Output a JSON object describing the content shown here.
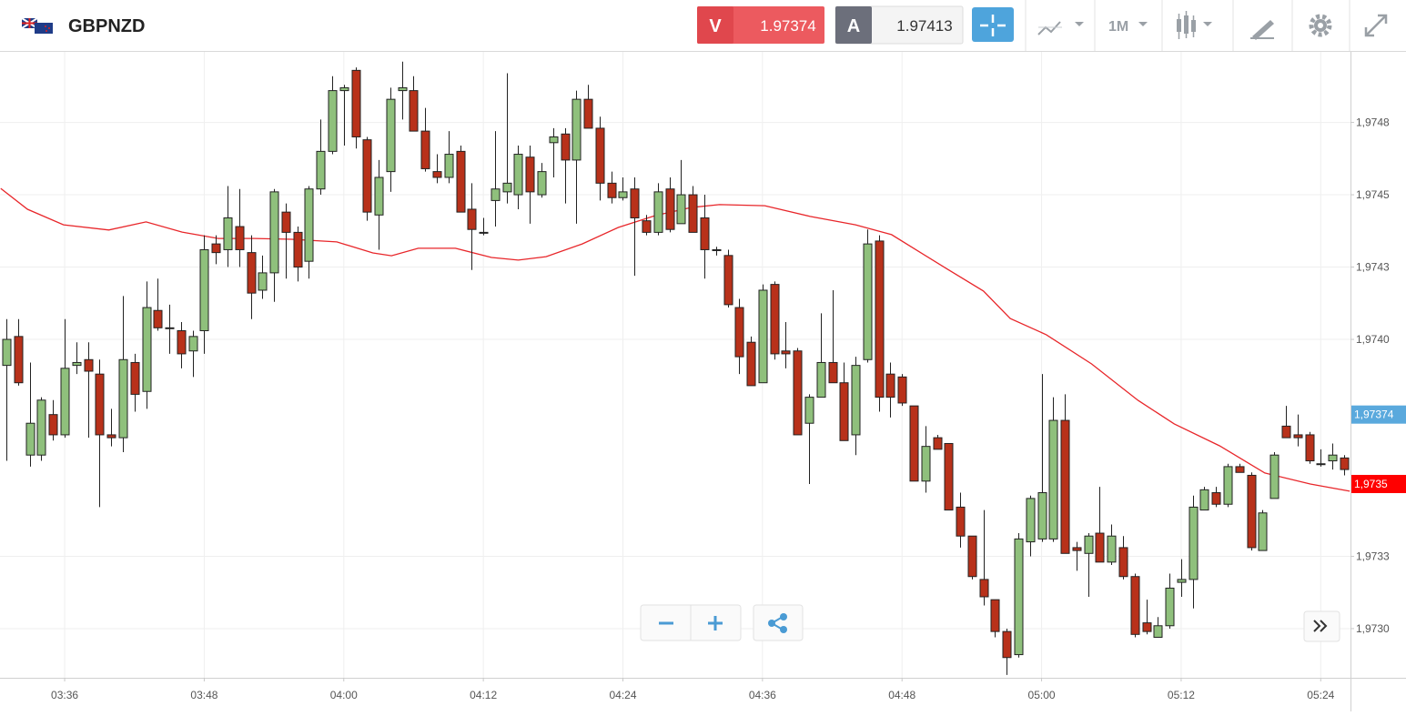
{
  "header": {
    "symbol": "GBPNZD",
    "sell_label": "V",
    "sell_price": "1.97374",
    "buy_label": "A",
    "buy_price": "1.97413",
    "timeframe": "1M"
  },
  "chart_data": {
    "type": "candlestick",
    "x": [
      211,
      212,
      213,
      214,
      215,
      216,
      217,
      218,
      219,
      220,
      221,
      222,
      223,
      224,
      225,
      226,
      227,
      228,
      229,
      230,
      231,
      232,
      233,
      234,
      235,
      236,
      237,
      238,
      239,
      240,
      241,
      242,
      243,
      244,
      245,
      246,
      247,
      248,
      249,
      250,
      251,
      252,
      253,
      254,
      255,
      256,
      257,
      258,
      259,
      260,
      261,
      262,
      263,
      264,
      265,
      266,
      267,
      268,
      269,
      270,
      271,
      272,
      273,
      274,
      275,
      276,
      277,
      278,
      279,
      280,
      281,
      282,
      283,
      284,
      285,
      286,
      287,
      288,
      289,
      290,
      291,
      292,
      293,
      294,
      295,
      296,
      297,
      298,
      299,
      300,
      301,
      302,
      303,
      304,
      305,
      306,
      307,
      308,
      309,
      310,
      311,
      312,
      313,
      314,
      315,
      316,
      317,
      318,
      319,
      320,
      321,
      322,
      323,
      324,
      325,
      326
    ],
    "open": [
      1.97391,
      1.97401,
      1.9736,
      1.9736,
      1.97374,
      1.97367,
      1.97391,
      1.97393,
      1.97388,
      1.97367,
      1.97366,
      1.97392,
      1.97382,
      1.9741,
      1.97404,
      1.97403,
      1.97396,
      1.97403,
      1.97433,
      1.97431,
      1.97439,
      1.9743,
      1.97417,
      1.97423,
      1.97444,
      1.97437,
      1.97427,
      1.97452,
      1.97465,
      1.97486,
      1.97493,
      1.97469,
      1.97443,
      1.97458,
      1.97486,
      1.97486,
      1.97472,
      1.97458,
      1.97456,
      1.97465,
      1.97445,
      1.97437,
      1.97448,
      1.97451,
      1.9745,
      1.97463,
      1.9745,
      1.97468,
      1.97471,
      1.97462,
      1.97483,
      1.97473,
      1.97454,
      1.97449,
      1.97452,
      1.97441,
      1.97437,
      1.97452,
      1.9744,
      1.9745,
      1.97442,
      1.97431,
      1.97429,
      1.97411,
      1.97399,
      1.97385,
      1.97419,
      1.97396,
      1.97396,
      1.97371,
      1.9738,
      1.97392,
      1.97385,
      1.97367,
      1.97393,
      1.97434,
      1.97388,
      1.97387,
      1.97377,
      1.97351,
      1.97366,
      1.97364,
      1.97342,
      1.97332,
      1.97317,
      1.9731,
      1.97299,
      1.97291,
      1.9733,
      1.97331,
      1.97331,
      1.97372,
      1.97328,
      1.97326,
      1.97333,
      1.97323,
      1.97328,
      1.97318,
      1.97302,
      1.97297,
      1.97301,
      1.97316,
      1.97317,
      1.97341,
      1.97347,
      1.97343,
      1.97356,
      1.97353,
      1.97327,
      1.97345,
      1.9737,
      1.97367,
      1.97367,
      1.97357,
      1.97358,
      1.97359
    ],
    "high": [
      1.97407,
      1.97407,
      1.97392,
      1.9738,
      1.97379,
      1.97407,
      1.97399,
      1.97399,
      1.97393,
      1.97376,
      1.97415,
      1.97395,
      1.9742,
      1.97421,
      1.97412,
      1.97406,
      1.97403,
      1.97436,
      1.97436,
      1.97453,
      1.97452,
      1.97436,
      1.97429,
      1.97452,
      1.97447,
      1.97439,
      1.97453,
      1.97476,
      1.97491,
      1.97488,
      1.97494,
      1.9747,
      1.97462,
      1.97487,
      1.97496,
      1.97491,
      1.9748,
      1.97464,
      1.97472,
      1.97467,
      1.97454,
      1.97442,
      1.97472,
      1.97492,
      1.97467,
      1.97467,
      1.97461,
      1.97473,
      1.97473,
      1.97486,
      1.97488,
      1.97477,
      1.97458,
      1.97456,
      1.97456,
      1.97443,
      1.97454,
      1.97456,
      1.97462,
      1.97453,
      1.9745,
      1.97432,
      1.97431,
      1.97414,
      1.97401,
      1.97419,
      1.9742,
      1.97406,
      1.97397,
      1.97381,
      1.97409,
      1.97417,
      1.97392,
      1.97394,
      1.97438,
      1.97436,
      1.97392,
      1.97388,
      1.97377,
      1.9737,
      1.97367,
      1.97364,
      1.97347,
      1.97332,
      1.97341,
      1.9731,
      1.973,
      1.97333,
      1.97346,
      1.97388,
      1.9738,
      1.97381,
      1.9733,
      1.97333,
      1.97349,
      1.97336,
      1.97332,
      1.97319,
      1.9731,
      1.97304,
      1.97319,
      1.97324,
      1.97346,
      1.97349,
      1.97349,
      1.97357,
      1.97357,
      1.97354,
      1.97341,
      1.97361,
      1.97377,
      1.97374,
      1.97368,
      1.97362,
      1.97364,
      1.9736
    ],
    "low": [
      1.97358,
      1.97384,
      1.97356,
      1.97358,
      1.97365,
      1.97366,
      1.97388,
      1.97366,
      1.97342,
      1.97363,
      1.97361,
      1.97375,
      1.97376,
      1.97403,
      1.97395,
      1.9739,
      1.97387,
      1.97395,
      1.97426,
      1.97425,
      1.97425,
      1.97407,
      1.97414,
      1.97413,
      1.97421,
      1.9742,
      1.97421,
      1.9745,
      1.97464,
      1.97467,
      1.97466,
      1.97441,
      1.97431,
      1.97451,
      1.97476,
      1.97472,
      1.97458,
      1.97454,
      1.97454,
      1.97444,
      1.97424,
      1.97436,
      1.97439,
      1.97447,
      1.97445,
      1.9744,
      1.97449,
      1.97456,
      1.97447,
      1.9744,
      1.97473,
      1.97448,
      1.97447,
      1.97448,
      1.97422,
      1.97436,
      1.97436,
      1.97437,
      1.9744,
      1.97437,
      1.97421,
      1.97429,
      1.97411,
      1.97388,
      1.97384,
      1.97385,
      1.97393,
      1.9739,
      1.97367,
      1.9735,
      1.9738,
      1.97385,
      1.97365,
      1.9736,
      1.97392,
      1.97375,
      1.97373,
      1.97377,
      1.97351,
      1.97347,
      1.97362,
      1.97341,
      1.97328,
      1.97317,
      1.97308,
      1.97297,
      1.97284,
      1.9729,
      1.97325,
      1.9733,
      1.9733,
      1.97326,
      1.9732,
      1.97311,
      1.97323,
      1.97322,
      1.97317,
      1.97297,
      1.97298,
      1.97297,
      1.973,
      1.97311,
      1.97307,
      1.97341,
      1.97342,
      1.97342,
      1.97354,
      1.97327,
      1.97327,
      1.97345,
      1.97366,
      1.97363,
      1.97357,
      1.97356,
      1.97355,
      1.97353
    ],
    "close": [
      1.974,
      1.97385,
      1.97371,
      1.97379,
      1.97367,
      1.9739,
      1.97392,
      1.97389,
      1.97367,
      1.97366,
      1.97393,
      1.97381,
      1.97411,
      1.97404,
      1.97404,
      1.97395,
      1.97401,
      1.97431,
      1.9743,
      1.97442,
      1.97431,
      1.97416,
      1.97423,
      1.97451,
      1.97437,
      1.97425,
      1.97452,
      1.97465,
      1.97486,
      1.97487,
      1.9747,
      1.97444,
      1.97456,
      1.97483,
      1.97487,
      1.97472,
      1.97459,
      1.97456,
      1.97464,
      1.97444,
      1.97438,
      1.97437,
      1.97452,
      1.97454,
      1.97464,
      1.97451,
      1.97458,
      1.9747,
      1.97462,
      1.97483,
      1.97473,
      1.97454,
      1.97449,
      1.97451,
      1.97442,
      1.97437,
      1.97451,
      1.97438,
      1.9745,
      1.97437,
      1.97431,
      1.97431,
      1.97412,
      1.97394,
      1.97384,
      1.97417,
      1.97395,
      1.97395,
      1.97367,
      1.9738,
      1.97392,
      1.97385,
      1.97365,
      1.97391,
      1.97433,
      1.9738,
      1.9738,
      1.97378,
      1.97351,
      1.97363,
      1.97362,
      1.97341,
      1.97332,
      1.97318,
      1.97311,
      1.97299,
      1.9729,
      1.97331,
      1.97345,
      1.97347,
      1.97372,
      1.97326,
      1.97327,
      1.97332,
      1.97323,
      1.97332,
      1.97318,
      1.97298,
      1.97299,
      1.97301,
      1.97314,
      1.97317,
      1.97342,
      1.97348,
      1.97343,
      1.97356,
      1.97354,
      1.97328,
      1.9734,
      1.9736,
      1.97366,
      1.97366,
      1.97358,
      1.97357,
      1.9736,
      1.97355
    ],
    "up_color": "#8fc07c",
    "down_color": "#b8311a",
    "moving_average": {
      "color": "#e8262a",
      "x": [
        210.5,
        212.8,
        215.9,
        219.8,
        223,
        226.1,
        229.2,
        232.3,
        235.5,
        239.4,
        242.5,
        244.1,
        246.4,
        249.6,
        252.7,
        255,
        257.4,
        260.5,
        263.6,
        266.8,
        269.9,
        272.3,
        276.2,
        280.1,
        284,
        287.1,
        291.8,
        295,
        297.3,
        300.4,
        304.3,
        308.3,
        311.4,
        315.3,
        319.2,
        323.1,
        326.5
      ],
      "values": [
        1.974522,
        1.97445,
        1.974396,
        1.974378,
        1.974406,
        1.974371,
        1.974349,
        1.974349,
        1.974346,
        1.974337,
        1.974299,
        1.974289,
        1.974315,
        1.974315,
        1.974283,
        1.974274,
        1.974286,
        1.97433,
        1.974387,
        1.974428,
        1.974456,
        1.974466,
        1.974462,
        1.974425,
        1.974396,
        1.974362,
        1.974245,
        1.974167,
        1.974072,
        1.974016,
        1.973915,
        1.973789,
        1.973708,
        1.973632,
        1.973538,
        1.9735,
        1.973475
      ]
    },
    "price_markers": [
      {
        "value": 1.97374,
        "label": "1,97374",
        "color": "#5aa9dd"
      },
      {
        "value": 1.9735,
        "label": "1,9735",
        "color": "#ff0000"
      }
    ],
    "xlim": [
      210.44,
      326.56
    ],
    "ylim": [
      1.97283,
      1.974994
    ],
    "xticks": [
      {
        "value": 216,
        "label": "03:36"
      },
      {
        "value": 228,
        "label": "03:48"
      },
      {
        "value": 240,
        "label": "04:00"
      },
      {
        "value": 252,
        "label": "04:12"
      },
      {
        "value": 264,
        "label": "04:24"
      },
      {
        "value": 276,
        "label": "04:36"
      },
      {
        "value": 288,
        "label": "04:48"
      },
      {
        "value": 300,
        "label": "05:00"
      },
      {
        "value": 312,
        "label": "05:12"
      },
      {
        "value": 324,
        "label": "05:24"
      }
    ],
    "yticks": [
      {
        "value": 1.97475,
        "label": "1,9748"
      },
      {
        "value": 1.9745,
        "label": "1,9745"
      },
      {
        "value": 1.97425,
        "label": "1,9743"
      },
      {
        "value": 1.974,
        "label": "1,9740"
      },
      {
        "value": 1.97325,
        "label": "1,9733"
      },
      {
        "value": 1.973,
        "label": "1,9730"
      }
    ],
    "grid": true
  }
}
